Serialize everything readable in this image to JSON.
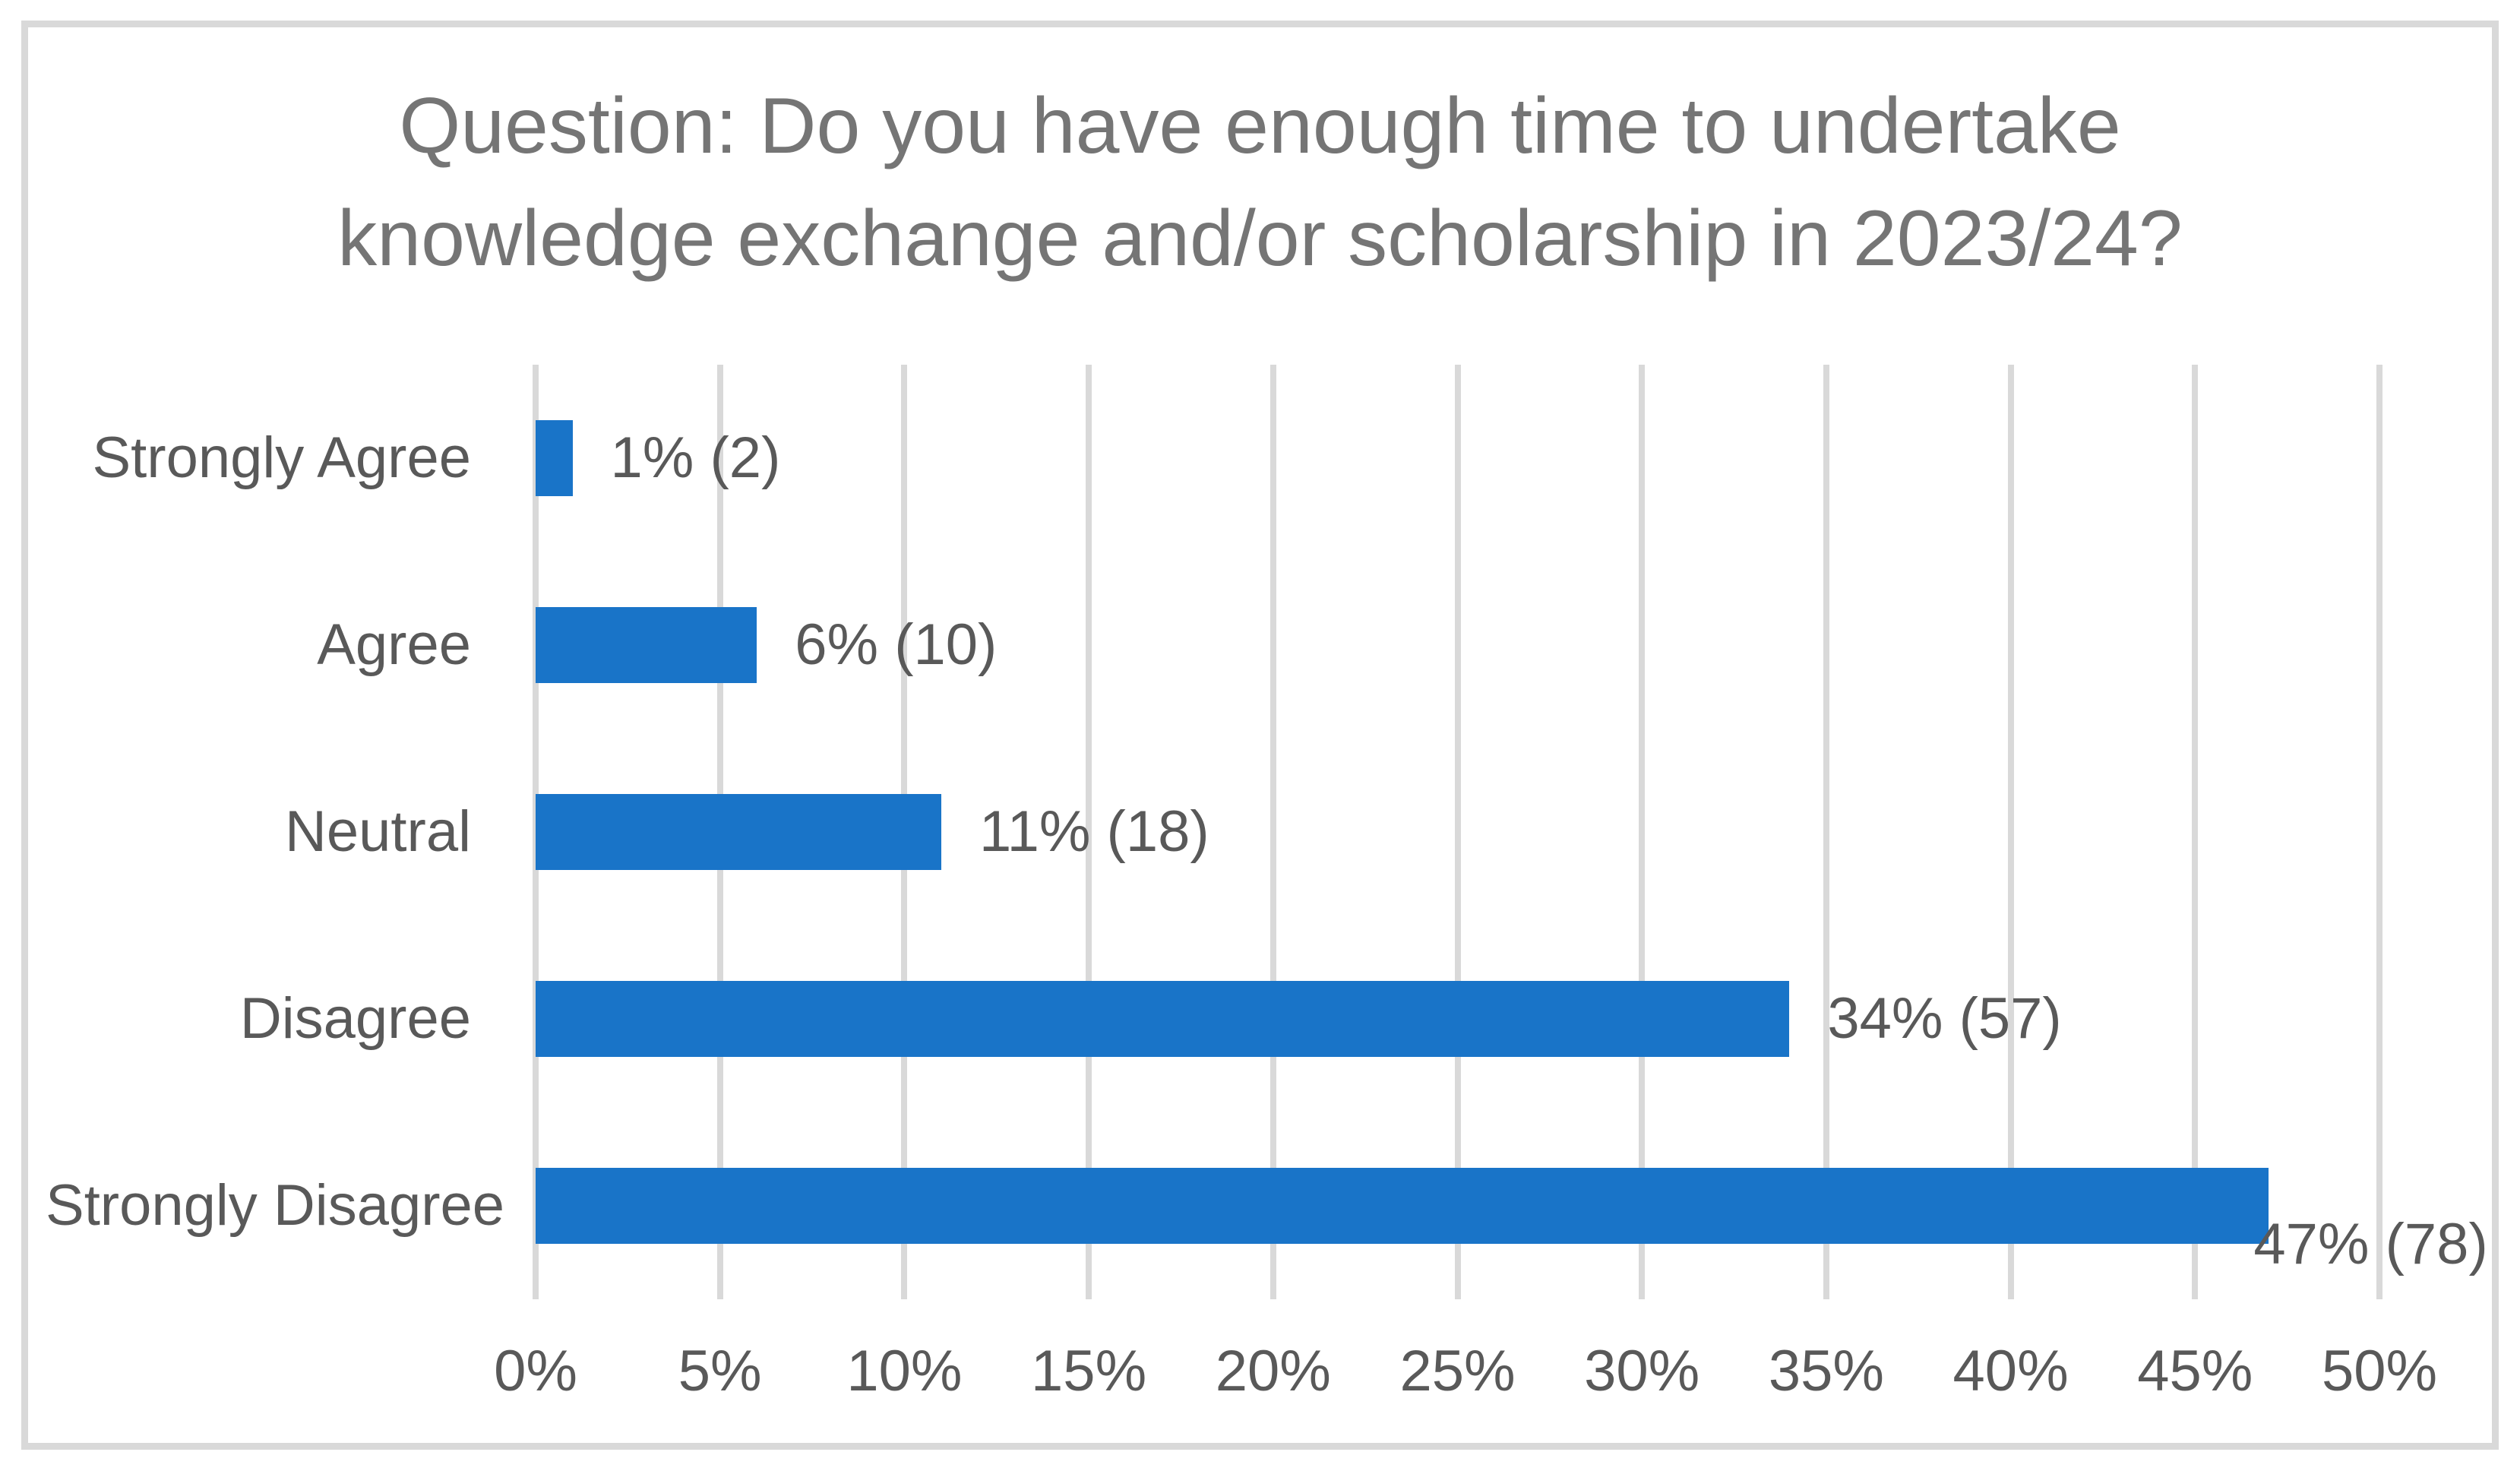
{
  "title": {
    "text": "Question: Do you have enough time to undertake knowledge exchange and/or scholarship in 2023/24?",
    "lines": [
      "Question: Do you have enough time to undertake",
      "knowledge exchange and/or scholarship in 2023/24?"
    ],
    "color": "#757575"
  },
  "chart_data": {
    "type": "bar",
    "orientation": "horizontal",
    "title": "Question: Do you have enough time to undertake knowledge exchange and/or scholarship in 2023/24?",
    "categories": [
      "Strongly Agree",
      "Agree",
      "Neutral",
      "Disagree",
      "Strongly Disagree"
    ],
    "values": [
      1,
      6,
      11,
      34,
      47
    ],
    "counts": [
      2,
      10,
      18,
      57,
      78
    ],
    "data_labels": [
      "1% (2)",
      "6% (10)",
      "11% (18)",
      "34% (57)",
      "47% (78)"
    ],
    "x_ticks": [
      "0%",
      "5%",
      "10%",
      "15%",
      "20%",
      "25%",
      "30%",
      "35%",
      "40%",
      "45%",
      "50%"
    ],
    "xlim": [
      0,
      50
    ],
    "xlabel": "",
    "ylabel": "",
    "grid": "vertical-only",
    "legend": "none",
    "bar_color": "#1974c8",
    "axis_label_color": "#595959",
    "gridline_color": "#d9d9d9",
    "frame_border_color": "#d9d9d9",
    "background_color": "#ffffff",
    "last_label_placement": "inside-end-shifted-down"
  }
}
